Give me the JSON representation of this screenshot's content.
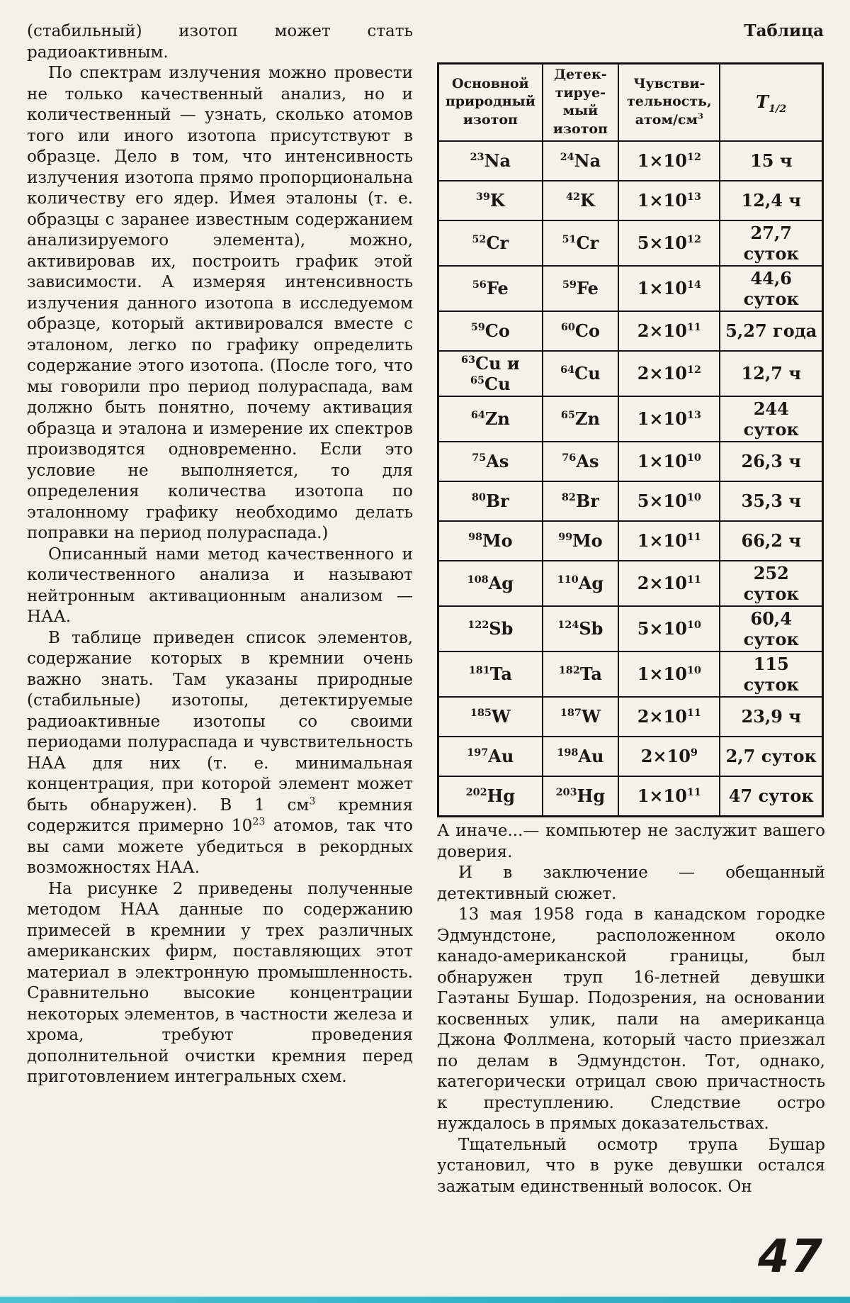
{
  "page": {
    "number": "47",
    "table_label": "Таблица"
  },
  "left_column": {
    "paragraphs": [
      "(стабильный) изотоп может стать радиоактивным.",
      "По спектрам излучения можно провести не только качественный анализ, но и количественный — узнать, сколько атомов того или иного изотопа присутствуют в образце. Дело в том, что интенсивность излучения изотопа прямо пропорциональна количеству его ядер. Имея эталоны (т. е. образцы с заранее известным содержанием анализируемого элемента), можно, активировав их, построить график этой зависимости. А измеряя интенсивность излучения данного изотопа в исследуемом образце, который активировался вместе с эталоном, легко по графику определить содержание этого изотопа. (После того, что мы говорили про период полураспада, вам должно быть понятно, почему активация образца и эталона и измерение их спектров производятся одновременно. Если это условие не выполняется, то для определения количества изотопа по эталонному графику необходимо делать поправки на период полураспада.)",
      "Описанный нами метод качественного и количественного анализа и называют нейтронным активационным анализом — НАА.",
      "В таблице приведен список элементов, содержание которых в кремнии очень важно знать. Там указаны природные (стабильные) изотопы, детектируемые радиоактивные изотопы со своими периодами полураспада и чувствительность НАА для них (т. е. минимальная концентрация, при которой элемент может быть обнаружен). В 1 см^3^ кремния содержится примерно 10^23^ атомов, так что вы сами можете убедиться в рекордных возможностях НАА.",
      "На рисунке 2 приведены полученные методом НАА данные по содержанию примесей в кремнии у трех различных американских фирм, поставляющих этот материал в электронную промышленность. Сравнительно высокие концентрации некоторых элементов, в частности железа и хрома, требуют проведения дополнительной очистки кремния перед приготовлением интегральных схем."
    ]
  },
  "table": {
    "headers": [
      "Основной\nприродный\nизотоп",
      "Детек-\nтируе-\nмый\nизотоп",
      "Чувстви-\nтельность,\nатом/см^3^",
      "T~1/2~"
    ],
    "rows": [
      [
        "^23^Na",
        "^24^Na",
        "1×10^12^",
        "15 ч"
      ],
      [
        "^39^K",
        "^42^K",
        "1×10^13^",
        "12,4 ч"
      ],
      [
        "^52^Cr",
        "^51^Cr",
        "5×10^12^",
        "27,7 суток"
      ],
      [
        "^56^Fe",
        "^59^Fe",
        "1×10^14^",
        "44,6 суток"
      ],
      [
        "^59^Co",
        "^60^Co",
        "2×10^11^",
        "5,27 года"
      ],
      [
        "^63^Cu и ^65^Cu",
        "^64^Cu",
        "2×10^12^",
        "12,7 ч"
      ],
      [
        "^64^Zn",
        "^65^Zn",
        "1×10^13^",
        "244 суток"
      ],
      [
        "^75^As",
        "^76^As",
        "1×10^10^",
        "26,3 ч"
      ],
      [
        "^80^Br",
        "^82^Br",
        "5×10^10^",
        "35,3 ч"
      ],
      [
        "^98^Mo",
        "^99^Mo",
        "1×10^11^",
        "66,2 ч"
      ],
      [
        "^108^Ag",
        "^110^Ag",
        "2×10^11^",
        "252 суток"
      ],
      [
        "^122^Sb",
        "^124^Sb",
        "5×10^10^",
        "60,4 суток"
      ],
      [
        "^181^Ta",
        "^182^Ta",
        "1×10^10^",
        "115 суток"
      ],
      [
        "^185^W",
        "^187^W",
        "2×10^11^",
        "23,9 ч"
      ],
      [
        "^197^Au",
        "^198^Au",
        "2×10^9^",
        "2,7 суток"
      ],
      [
        "^202^Hg",
        "^203^Hg",
        "1×10^11^",
        "47 суток"
      ]
    ]
  },
  "right_column": {
    "paragraphs": [
      "А иначе...— компьютер не заслужит вашего доверия.",
      "И в заключение — обещанный детективный сюжет.",
      "13 мая 1958 года в канадском городке Эдмундстоне, расположенном около канадо-американской границы, был обнаружен труп 16-летней девушки Гаэтаны Бушар. Подозрения, на основании косвенных улик, пали на американца Джона Фоллмена, который часто приезжал по делам в Эдмундстон. Тот, однако, категорически отрицал свою причастность к преступлению. Следствие остро нуждалось в прямых доказательствах.",
      "Тщательный осмотр трупа Бушар установил, что в руке девушки остался зажатым единственный волосок. Он"
    ]
  }
}
